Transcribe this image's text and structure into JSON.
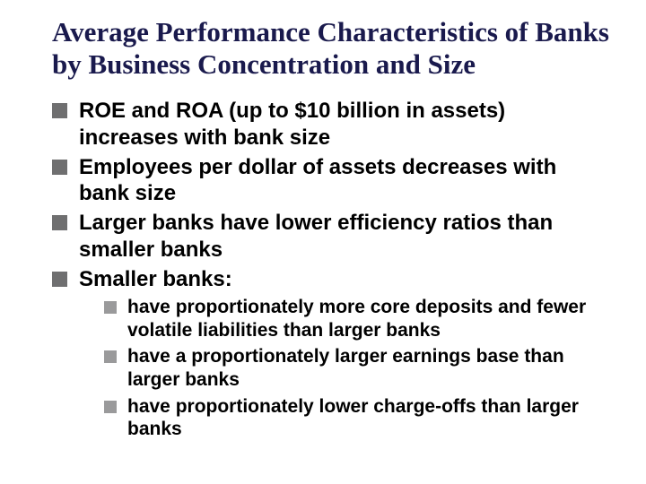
{
  "title": "Average Performance Characteristics of Banks by Business Concentration and Size",
  "bullets": [
    {
      "text": "ROE and ROA (up to $10 billion in assets) increases with bank size"
    },
    {
      "text": "Employees per dollar of assets decreases with bank size"
    },
    {
      "text": "Larger banks have lower efficiency ratios than smaller banks"
    },
    {
      "text": "Smaller banks:",
      "sub": [
        "have proportionately more core deposits and fewer volatile liabilities than larger banks",
        "have a proportionately larger earnings base than larger banks",
        "have proportionately lower charge-offs than larger banks"
      ]
    }
  ],
  "colors": {
    "title": "#1a1a4d",
    "bullet_l1": "#6f6f70",
    "bullet_l2": "#9a9a9b",
    "text": "#000000",
    "background": "#ffffff"
  },
  "fonts": {
    "title_family": "Times New Roman",
    "title_size_pt": 31,
    "body_family": "Arial",
    "body_l1_size_pt": 24,
    "body_l2_size_pt": 21,
    "weight": "bold"
  }
}
